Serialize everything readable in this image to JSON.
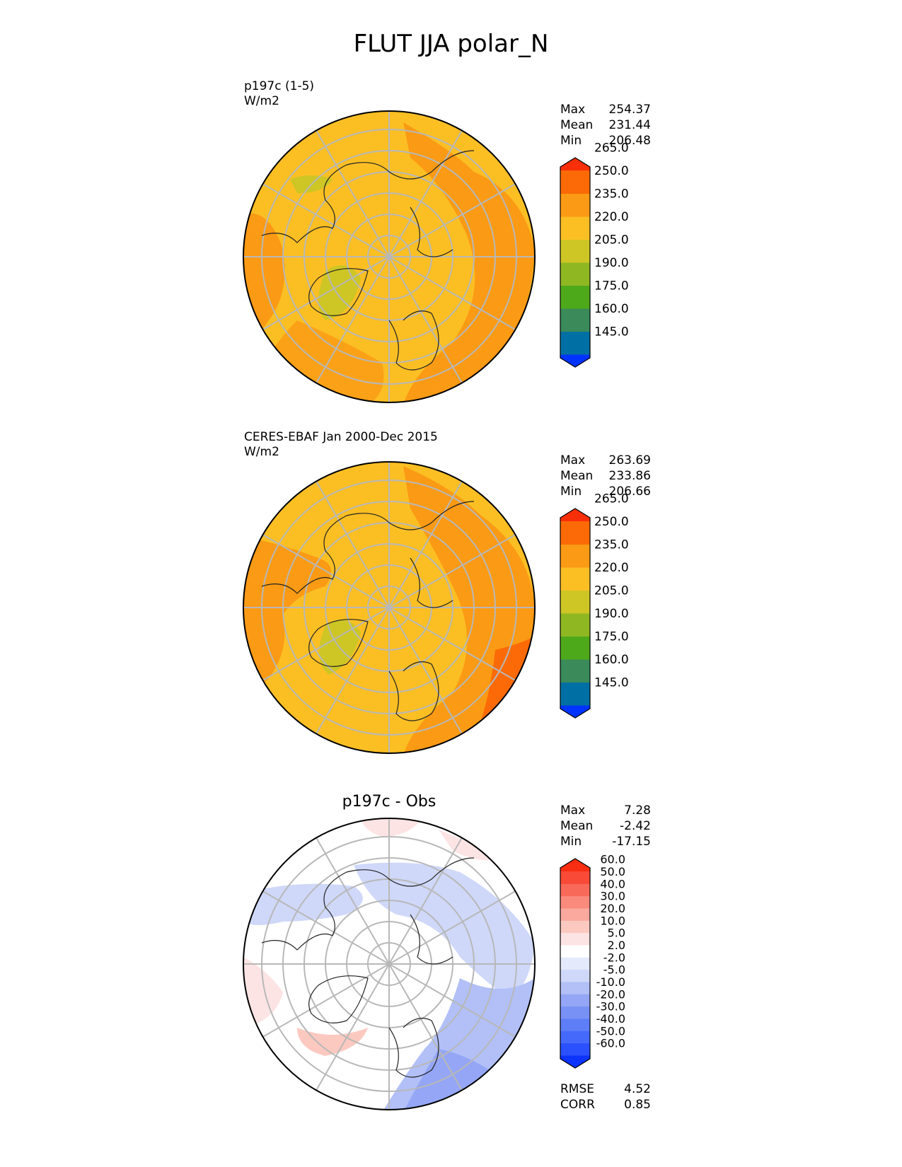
{
  "title": "FLUT JJA polar_N",
  "panels": [
    {
      "id": "test",
      "title_lines": [
        "p197c (1-5)",
        "W/m2"
      ],
      "center_title": "",
      "stats": [
        {
          "label": "Max",
          "value": "254.37"
        },
        {
          "label": "Mean",
          "value": "231.44"
        },
        {
          "label": "Min",
          "value": "206.48"
        }
      ],
      "colorbar": {
        "levels": [
          "145.0",
          "160.0",
          "175.0",
          "190.0",
          "205.0",
          "220.0",
          "235.0",
          "250.0",
          "265.0"
        ],
        "colors": [
          "#0033ff",
          "#006fa3",
          "#3a8a5a",
          "#4ea91a",
          "#8fb722",
          "#cdc625",
          "#fbbf24",
          "#fb9a14",
          "#fb6a06",
          "#f92f0a"
        ],
        "extend": "both"
      },
      "map": {
        "base_color": "#fbbf24"
      }
    },
    {
      "id": "obs",
      "title_lines": [
        "CERES-EBAF Jan 2000-Dec 2015",
        "W/m2"
      ],
      "center_title": "",
      "stats": [
        {
          "label": "Max",
          "value": "263.69"
        },
        {
          "label": "Mean",
          "value": "233.86"
        },
        {
          "label": "Min",
          "value": "206.66"
        }
      ],
      "colorbar": {
        "levels": [
          "145.0",
          "160.0",
          "175.0",
          "190.0",
          "205.0",
          "220.0",
          "235.0",
          "250.0",
          "265.0"
        ],
        "colors": [
          "#0033ff",
          "#006fa3",
          "#3a8a5a",
          "#4ea91a",
          "#8fb722",
          "#cdc625",
          "#fbbf24",
          "#fb9a14",
          "#fb6a06",
          "#f92f0a"
        ],
        "extend": "both"
      },
      "map": {
        "base_color": "#fbbf24"
      }
    },
    {
      "id": "diff",
      "title_lines": [],
      "center_title": "p197c - Obs",
      "stats": [
        {
          "label": "Max",
          "value": "7.28"
        },
        {
          "label": "Mean",
          "value": "-2.42"
        },
        {
          "label": "Min",
          "value": "-17.15"
        }
      ],
      "extra_stats": [
        {
          "label": "RMSE",
          "value": "4.52"
        },
        {
          "label": "CORR",
          "value": "0.85"
        }
      ],
      "colorbar": {
        "levels": [
          "-60.0",
          "-50.0",
          "-40.0",
          "-30.0",
          "-20.0",
          "-10.0",
          "-5.0",
          "-2.0",
          "2.0",
          "5.0",
          "10.0",
          "20.0",
          "30.0",
          "40.0",
          "50.0",
          "60.0"
        ],
        "colors": [
          "#0c33ff",
          "#2a50ff",
          "#4569fb",
          "#5d7ef7",
          "#7891f4",
          "#94a6f5",
          "#b2c0f7",
          "#cfd8f9",
          "#e4e9fb",
          "#ffffff",
          "#fde4e4",
          "#fcc9c0",
          "#fba99e",
          "#fa8a7c",
          "#f9695a",
          "#f84a36",
          "#f82d12"
        ],
        "extend": "both"
      },
      "map": {
        "base_color": "#ffffff"
      }
    }
  ]
}
